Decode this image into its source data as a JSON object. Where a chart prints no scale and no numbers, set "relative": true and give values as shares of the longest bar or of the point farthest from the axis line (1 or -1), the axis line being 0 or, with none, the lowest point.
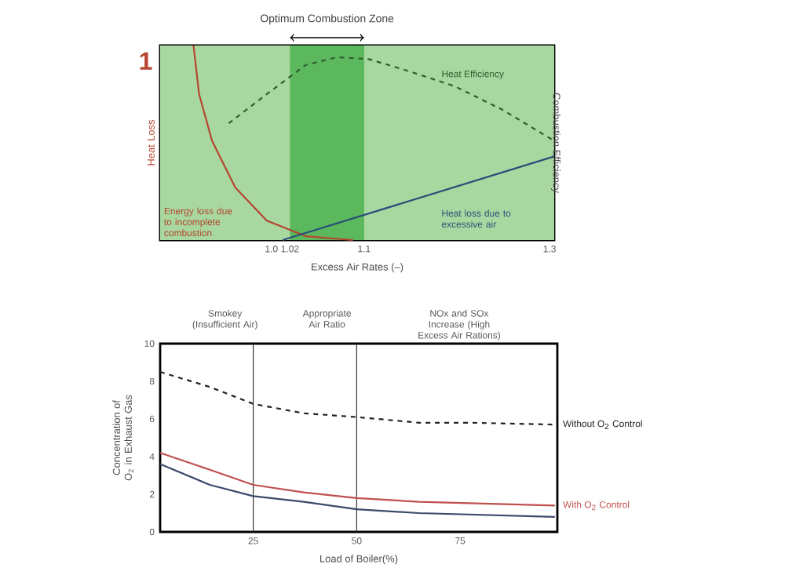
{
  "chart_data": [
    {
      "type": "line",
      "relative": true,
      "ylabel": "Heat Loss",
      "y2label": "Combustion Efficiency",
      "xlabel": "Excess Air Rates (–)",
      "xlim": [
        0.88,
        1.305
      ],
      "xticks": [
        {
          "value": 1.0,
          "label": "1.0"
        },
        1.02,
        1.1,
        1.3
      ],
      "bands": [
        {
          "axis": "x",
          "from": 1.02,
          "to": 1.1,
          "label": "Optimum Combustion Zone",
          "color": "#5cb85c"
        }
      ],
      "annotations": [
        "1",
        "Smokey (Insufficient Air)",
        "Appropriate Air Ratio",
        "NOx and SOx Increase (High Excess Air Rations)"
      ],
      "series": [
        {
          "name": "Energy loss due to incomplete combustion",
          "color": "#b5452f",
          "x": [
            0.916,
            0.922,
            0.936,
            0.961,
            0.995,
            1.037,
            1.088
          ],
          "values": [
            1.0,
            0.75,
            0.51,
            0.27,
            0.1,
            0.02,
            0
          ]
        },
        {
          "name": "Heat loss due to excessive air",
          "color": "#2a4f7a",
          "x": [
            1.012,
            1.305
          ],
          "values": [
            0,
            0.43
          ]
        },
        {
          "name": "Heat Efficiency",
          "color": "#2f5f2f",
          "line_style": "dashed",
          "x": [
            0.954,
            0.995,
            1.037,
            1.071,
            1.105,
            1.147,
            1.198,
            1.249,
            1.305
          ],
          "values": [
            0.6,
            0.75,
            0.9,
            0.94,
            0.93,
            0.87,
            0.79,
            0.67,
            0.51
          ]
        }
      ]
    },
    {
      "type": "line",
      "xlabel": "Load of Boiler(%)",
      "ylabel": "Concentration of O$_{2}$ in Exhaust Gas",
      "xlim": [
        2.5,
        98.5
      ],
      "xticks": [
        25,
        50,
        75
      ],
      "ylim": [
        0,
        10
      ],
      "yticks": [
        0,
        2,
        4,
        6,
        8,
        10
      ],
      "ref_lines": [
        {
          "axis": "x",
          "value": 25,
          "color": "#333333"
        },
        {
          "axis": "x",
          "value": 50,
          "color": "#333333"
        }
      ],
      "series": [
        {
          "name": "Without O$_{2}$ Control",
          "color": "#222222",
          "line_style": "dashed",
          "x": [
            2.5,
            14.5,
            25,
            37.2,
            50,
            65,
            77.6,
            97.9
          ],
          "values": [
            8.5,
            7.7,
            6.8,
            6.3,
            6.1,
            5.8,
            5.8,
            5.7
          ]
        },
        {
          "name": "With O$_{2}$ Control",
          "color": "#c0504d",
          "x": [
            2.5,
            14.5,
            25,
            37.2,
            50,
            65,
            97.9
          ],
          "values": [
            4.2,
            3.3,
            2.5,
            2.1,
            1.8,
            1.6,
            1.4
          ]
        },
        {
          "color": "#3b4a6b",
          "x": [
            2.5,
            14.5,
            25,
            37.2,
            50,
            65,
            97.9
          ],
          "values": [
            3.6,
            2.5,
            1.9,
            1.6,
            1.2,
            1.0,
            0.8
          ]
        }
      ]
    }
  ]
}
